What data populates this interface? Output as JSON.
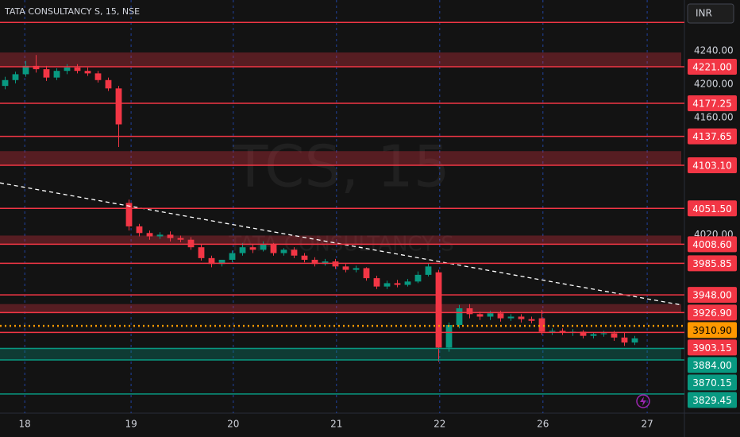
{
  "chart_data": {
    "type": "candlestick",
    "title": "TATA CONSULTANCY S, 15, NSE",
    "currency": "INR",
    "watermark": "TCS, 15",
    "watermark_sub": "TATA CONSULTANCY S",
    "up_color": "#089981",
    "down_color": "#f23645",
    "xlim": [
      -0.5,
      65.5
    ],
    "ylim": [
      3806.5,
      4300.8
    ],
    "xticks": [
      {
        "value": 1.9,
        "label": "18"
      },
      {
        "value": 12.2,
        "label": "19"
      },
      {
        "value": 22.1,
        "label": "20"
      },
      {
        "value": 32.1,
        "label": "21"
      },
      {
        "value": 42.1,
        "label": "22"
      },
      {
        "value": 52.1,
        "label": "26"
      },
      {
        "value": 62.2,
        "label": "27"
      }
    ],
    "yticks": [
      {
        "value": 4240,
        "label": "4240.00"
      },
      {
        "value": 4200,
        "label": "4200.00"
      },
      {
        "value": 4160,
        "label": "4160.00"
      },
      {
        "value": 4020,
        "label": "4020.00"
      }
    ],
    "open": [
      4198,
      4205,
      4212,
      4222,
      4218,
      4208,
      4216,
      4220,
      4216,
      4213,
      4205,
      4195,
      4058,
      4030,
      4022,
      4018,
      4020,
      4016,
      4014,
      4005,
      3992,
      3985,
      3990,
      3998,
      4005,
      4002,
      4008,
      3998,
      4002,
      3995,
      3990,
      3985,
      3988,
      3982,
      3978,
      3980,
      3968,
      3958,
      3962,
      3960,
      3964,
      3972,
      3975,
      3885,
      3912,
      3932,
      3925,
      3922,
      3926,
      3920,
      3922,
      3919,
      3920,
      3904,
      3905,
      3903,
      3904,
      3899,
      3901,
      3902,
      3897,
      3891
    ],
    "high": [
      4209,
      4215,
      4228,
      4235,
      4222,
      4219,
      4224,
      4224,
      4220,
      4216,
      4208,
      4198,
      4062,
      4033,
      4025,
      4023,
      4024,
      4019,
      4017,
      4008,
      3995,
      3990,
      4001,
      4010,
      4008,
      4012,
      4010,
      4004,
      4005,
      3998,
      3993,
      3991,
      3991,
      3985,
      3983,
      3981,
      3971,
      3965,
      3966,
      3967,
      3976,
      3986,
      3978,
      3915,
      3936,
      3937,
      3928,
      3929,
      3929,
      3925,
      3925,
      3922,
      3930,
      3908,
      3908,
      3907,
      3906,
      3903,
      3905,
      3905,
      3903,
      3899
    ],
    "low": [
      4194,
      4201,
      4209,
      4214,
      4204,
      4205,
      4212,
      4213,
      4210,
      4202,
      4192,
      4125,
      4025,
      4018,
      4014,
      4015,
      4012,
      4011,
      4002,
      3989,
      3981,
      3982,
      3987,
      3995,
      3998,
      4000,
      3995,
      3995,
      3992,
      3987,
      3982,
      3983,
      3979,
      3975,
      3975,
      3965,
      3955,
      3955,
      3957,
      3958,
      3962,
      3970,
      3868,
      3880,
      3908,
      3920,
      3918,
      3918,
      3916,
      3917,
      3915,
      3914,
      3900,
      3900,
      3900,
      3899,
      3896,
      3896,
      3898,
      3893,
      3887,
      3888
    ],
    "close": [
      4205,
      4212,
      4222,
      4218,
      4208,
      4216,
      4220,
      4216,
      4213,
      4205,
      4195,
      4152,
      4030,
      4022,
      4018,
      4020,
      4016,
      4014,
      4005,
      3992,
      3985,
      3990,
      3998,
      4005,
      4002,
      4008,
      3998,
      4002,
      3995,
      3990,
      3985,
      3988,
      3982,
      3978,
      3980,
      3968,
      3958,
      3962,
      3960,
      3964,
      3972,
      3982,
      3885,
      3912,
      3932,
      3925,
      3922,
      3926,
      3920,
      3922,
      3919,
      3917,
      3904,
      3905,
      3903,
      3904,
      3899,
      3901,
      3902,
      3897,
      3891,
      3896
    ],
    "zones": [
      {
        "range": [
          4221,
          4238
        ],
        "color": "#f23645"
      },
      {
        "range": [
          4103.1,
          4120
        ],
        "color": "#f23645"
      },
      {
        "range": [
          4008.6,
          4019
        ],
        "color": "#f23645"
      },
      {
        "range": [
          3926.9,
          3937
        ],
        "color": "#f23645"
      },
      {
        "range": [
          3870.15,
          3884
        ],
        "color": "#089981"
      }
    ],
    "levels": [
      {
        "value": 4274,
        "color": "#f23645"
      },
      {
        "value": 4221,
        "label": "4221.00",
        "color": "#f23645"
      },
      {
        "value": 4177.25,
        "label": "4177.25",
        "color": "#f23645"
      },
      {
        "value": 4137.65,
        "label": "4137.65",
        "color": "#f23645"
      },
      {
        "value": 4103.1,
        "label": "4103.10",
        "color": "#f23645"
      },
      {
        "value": 4051.5,
        "label": "4051.50",
        "color": "#f23645"
      },
      {
        "value": 4008.6,
        "label": "4008.60",
        "color": "#f23645"
      },
      {
        "value": 3985.85,
        "label": "3985.85",
        "color": "#f23645"
      },
      {
        "value": 3948,
        "label": "3948.00",
        "color": "#f23645"
      },
      {
        "value": 3926.9,
        "label": "3926.90",
        "color": "#f23645"
      },
      {
        "value": 3910.9,
        "label": "3910.90",
        "color": "#ff9800",
        "dotted": true
      },
      {
        "value": 3903.15,
        "label": "3903.15",
        "color": "#f23645"
      },
      {
        "value": 3884,
        "label": "3884.00",
        "color": "#089981"
      },
      {
        "value": 3870.15,
        "label": "3870.15",
        "color": "#089981"
      },
      {
        "value": 3829.45,
        "label": "3829.45",
        "color": "#089981"
      }
    ],
    "trendline": {
      "x": [
        -0.5,
        65.5
      ],
      "y": [
        4082,
        3936
      ]
    }
  }
}
